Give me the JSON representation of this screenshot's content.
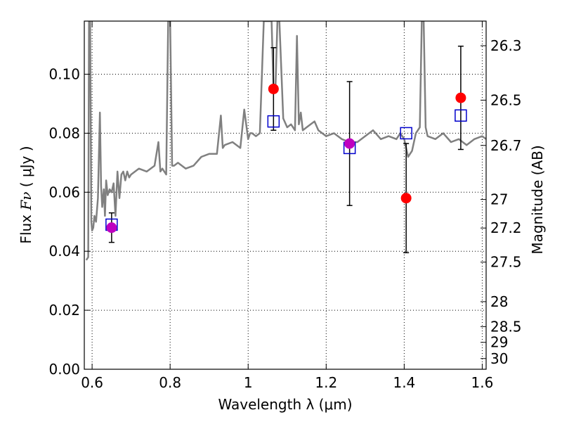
{
  "chart_data": {
    "type": "scatter",
    "title": "",
    "xlabel": "Wavelength  λ (μm)",
    "ylabel_left": {
      "prefix": "Flux  ",
      "math": "Fν",
      "suffix": "  ( μJy )"
    },
    "ylabel_right": "Magnitude (AB)",
    "xlim": [
      0.58,
      1.61
    ],
    "ylim": [
      0.0,
      0.118
    ],
    "grid": true,
    "x_ticks": [
      0.6,
      0.8,
      1.0,
      1.2,
      1.4,
      1.6
    ],
    "x_tick_labels": [
      "0.6",
      "0.8",
      "1",
      "1.2",
      "1.4",
      "1.6"
    ],
    "y_ticks": [
      0.0,
      0.02,
      0.04,
      0.06,
      0.08,
      0.1
    ],
    "y_tick_labels": [
      "0.00",
      "0.02",
      "0.04",
      "0.06",
      "0.08",
      "0.10"
    ],
    "right_ticks": [
      26.3,
      26.5,
      26.7,
      27.0,
      27.2,
      27.5,
      28.0,
      28.5,
      29.0,
      30.0
    ],
    "right_tick_labels": [
      "26.3",
      "26.5",
      "26.7",
      "27",
      "27.2",
      "27.5",
      "28",
      "28.5",
      "29",
      "30"
    ],
    "colors": {
      "spectrum": "#808080",
      "observed": "#ff0000",
      "model": "#0000cc",
      "overlap": "#bf00bf",
      "errorbar": "#000000"
    },
    "spectrum": {
      "x": [
        0.585,
        0.59,
        0.592,
        0.595,
        0.598,
        0.6,
        0.603,
        0.606,
        0.61,
        0.615,
        0.62,
        0.623,
        0.626,
        0.63,
        0.633,
        0.636,
        0.64,
        0.645,
        0.65,
        0.655,
        0.66,
        0.665,
        0.67,
        0.675,
        0.68,
        0.685,
        0.69,
        0.695,
        0.7,
        0.72,
        0.74,
        0.76,
        0.77,
        0.775,
        0.78,
        0.79,
        0.795,
        0.8,
        0.805,
        0.81,
        0.82,
        0.84,
        0.86,
        0.88,
        0.9,
        0.92,
        0.93,
        0.935,
        0.94,
        0.96,
        0.98,
        0.99,
        1.0,
        1.005,
        1.01,
        1.02,
        1.03,
        1.04,
        1.05,
        1.06,
        1.065,
        1.07,
        1.075,
        1.08,
        1.09,
        1.1,
        1.11,
        1.12,
        1.125,
        1.13,
        1.135,
        1.14,
        1.15,
        1.16,
        1.17,
        1.18,
        1.2,
        1.22,
        1.24,
        1.26,
        1.28,
        1.3,
        1.32,
        1.34,
        1.36,
        1.38,
        1.39,
        1.4,
        1.41,
        1.42,
        1.43,
        1.44,
        1.445,
        1.45,
        1.455,
        1.46,
        1.48,
        1.5,
        1.52,
        1.54,
        1.56,
        1.58,
        1.6,
        1.61
      ],
      "y": [
        0.037,
        0.038,
        0.118,
        0.118,
        0.05,
        0.047,
        0.048,
        0.052,
        0.05,
        0.058,
        0.087,
        0.062,
        0.055,
        0.061,
        0.052,
        0.064,
        0.059,
        0.061,
        0.06,
        0.063,
        0.052,
        0.067,
        0.058,
        0.066,
        0.067,
        0.064,
        0.067,
        0.065,
        0.066,
        0.068,
        0.067,
        0.069,
        0.077,
        0.067,
        0.068,
        0.066,
        0.118,
        0.118,
        0.069,
        0.069,
        0.07,
        0.068,
        0.069,
        0.072,
        0.073,
        0.073,
        0.086,
        0.075,
        0.076,
        0.077,
        0.075,
        0.088,
        0.078,
        0.08,
        0.08,
        0.079,
        0.08,
        0.118,
        0.118,
        0.118,
        0.095,
        0.095,
        0.118,
        0.118,
        0.085,
        0.082,
        0.083,
        0.081,
        0.113,
        0.083,
        0.087,
        0.081,
        0.082,
        0.083,
        0.084,
        0.081,
        0.079,
        0.08,
        0.078,
        0.077,
        0.077,
        0.079,
        0.081,
        0.078,
        0.079,
        0.078,
        0.08,
        0.078,
        0.072,
        0.074,
        0.08,
        0.082,
        0.118,
        0.118,
        0.082,
        0.079,
        0.078,
        0.08,
        0.077,
        0.078,
        0.076,
        0.078,
        0.079,
        0.078
      ]
    },
    "observed_points": [
      {
        "x": 0.65,
        "y": 0.048,
        "err": 0.005
      },
      {
        "x": 1.065,
        "y": 0.095,
        "err": 0.014
      },
      {
        "x": 1.26,
        "y": 0.0765,
        "err": 0.021
      },
      {
        "x": 1.405,
        "y": 0.058,
        "err": 0.0185
      },
      {
        "x": 1.545,
        "y": 0.092,
        "err": 0.0175
      }
    ],
    "model_points": [
      {
        "x": 0.65,
        "y": 0.049
      },
      {
        "x": 1.065,
        "y": 0.084
      },
      {
        "x": 1.26,
        "y": 0.075
      },
      {
        "x": 1.405,
        "y": 0.08
      },
      {
        "x": 1.545,
        "y": 0.086
      }
    ]
  }
}
